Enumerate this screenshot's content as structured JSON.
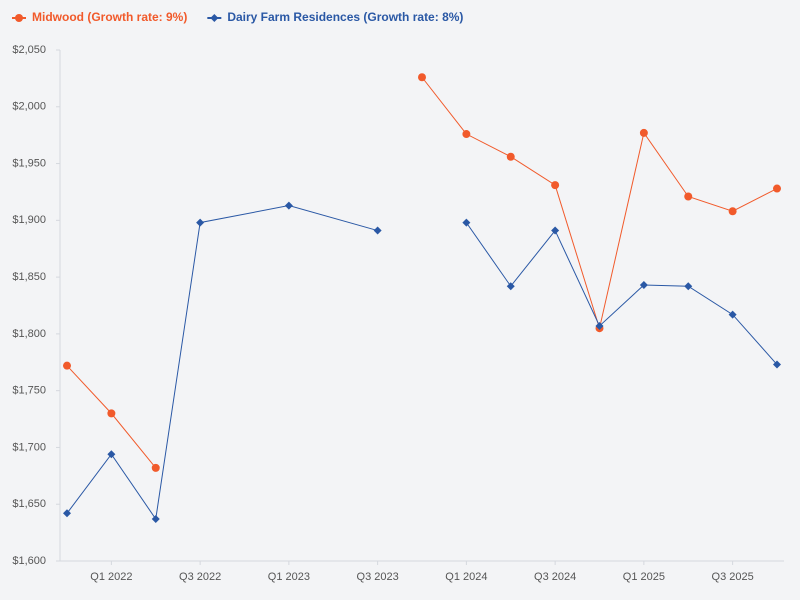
{
  "chart_data": {
    "type": "line",
    "x": [
      "Q4 2021",
      "Q1 2022",
      "Q2 2022",
      "Q3 2022",
      "Q1 2023",
      "Q3 2023",
      "Q4 2023",
      "Q1 2024",
      "Q2 2024",
      "Q3 2024",
      "Q4 2024",
      "Q1 2025",
      "Q2 2025",
      "Q3 2025",
      "Q4 2025"
    ],
    "xticks": [
      "Q1 2022",
      "Q3 2022",
      "Q1 2023",
      "Q3 2023",
      "Q1 2024",
      "Q3 2024",
      "Q1 2025",
      "Q3 2025"
    ],
    "series": [
      {
        "name": "Midwood (Growth rate: 9%)",
        "color": "#f15a2b",
        "marker": "circle",
        "values": [
          1772,
          1730,
          1682,
          null,
          null,
          null,
          2026,
          1976,
          1956,
          1931,
          1805,
          1977,
          1921,
          1908,
          1928
        ]
      },
      {
        "name": "Dairy Farm Residences (Growth rate: 8%)",
        "color": "#2a58a5",
        "marker": "diamond",
        "values": [
          1642,
          1694,
          1637,
          1898,
          1913,
          1891,
          null,
          1898,
          1842,
          1891,
          1807,
          1843,
          1842,
          1817,
          1773
        ]
      }
    ],
    "ylim": [
      1600,
      2050
    ],
    "yticks": [
      {
        "value": 1600,
        "label": "$1,600"
      },
      {
        "value": 1650,
        "label": "$1,650"
      },
      {
        "value": 1700,
        "label": "$1,700"
      },
      {
        "value": 1750,
        "label": "$1,750"
      },
      {
        "value": 1800,
        "label": "$1,800"
      },
      {
        "value": 1850,
        "label": "$1,850"
      },
      {
        "value": 1900,
        "label": "$1,900"
      },
      {
        "value": 1950,
        "label": "$1,950"
      },
      {
        "value": 2000,
        "label": "$2,000"
      },
      {
        "value": 2050,
        "label": "$2,050"
      }
    ],
    "grid": false
  }
}
